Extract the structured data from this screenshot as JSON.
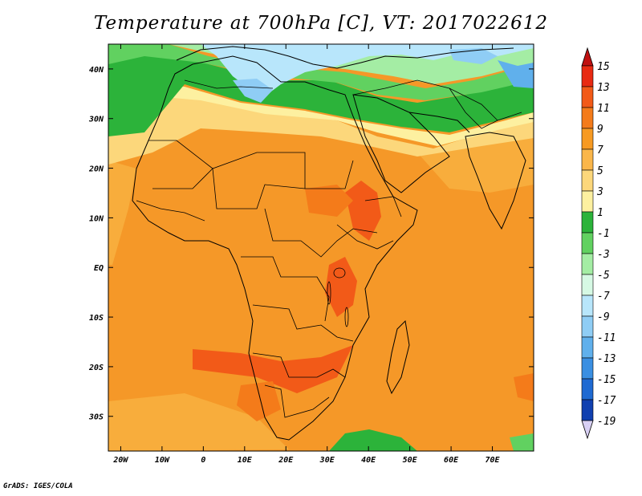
{
  "title": "Temperature at 700hPa [C], VT: 2017022612",
  "credit": "GrADS: IGES/COLA",
  "map": {
    "lon_range": [
      -23,
      80
    ],
    "lat_range": [
      -37,
      45
    ],
    "lon_ticks": [
      "20W",
      "10W",
      "0",
      "10E",
      "20E",
      "30E",
      "40E",
      "50E",
      "60E",
      "70E"
    ],
    "lon_tick_values": [
      -20,
      -10,
      0,
      10,
      20,
      30,
      40,
      50,
      60,
      70
    ],
    "lat_ticks": [
      "40N",
      "30N",
      "20N",
      "10N",
      "EQ",
      "10S",
      "20S",
      "30S"
    ],
    "lat_tick_values": [
      40,
      30,
      20,
      10,
      0,
      -10,
      -20,
      -30
    ],
    "background_field_color": "#f59828"
  },
  "colorbar": {
    "labels": [
      "15",
      "13",
      "11",
      "9",
      "7",
      "5",
      "3",
      "1",
      "-1",
      "-3",
      "-5",
      "-7",
      "-9",
      "-11",
      "-13",
      "-15",
      "-17",
      "-19"
    ],
    "colors": [
      "#e82a12",
      "#f25a18",
      "#f47b1a",
      "#f79a22",
      "#fab64a",
      "#fcd77b",
      "#fdf0a0",
      "#2cb33a",
      "#61d160",
      "#a4eda4",
      "#d6f9e4",
      "#b8e6fb",
      "#8fcdf5",
      "#60b0ec",
      "#3a8fe2",
      "#1f6ad2",
      "#1040b0",
      "#0a1a80",
      "#d8d0f4"
    ],
    "top_arrow_color": "#c01010",
    "bottom_arrow_color": "#d8d0f4"
  }
}
